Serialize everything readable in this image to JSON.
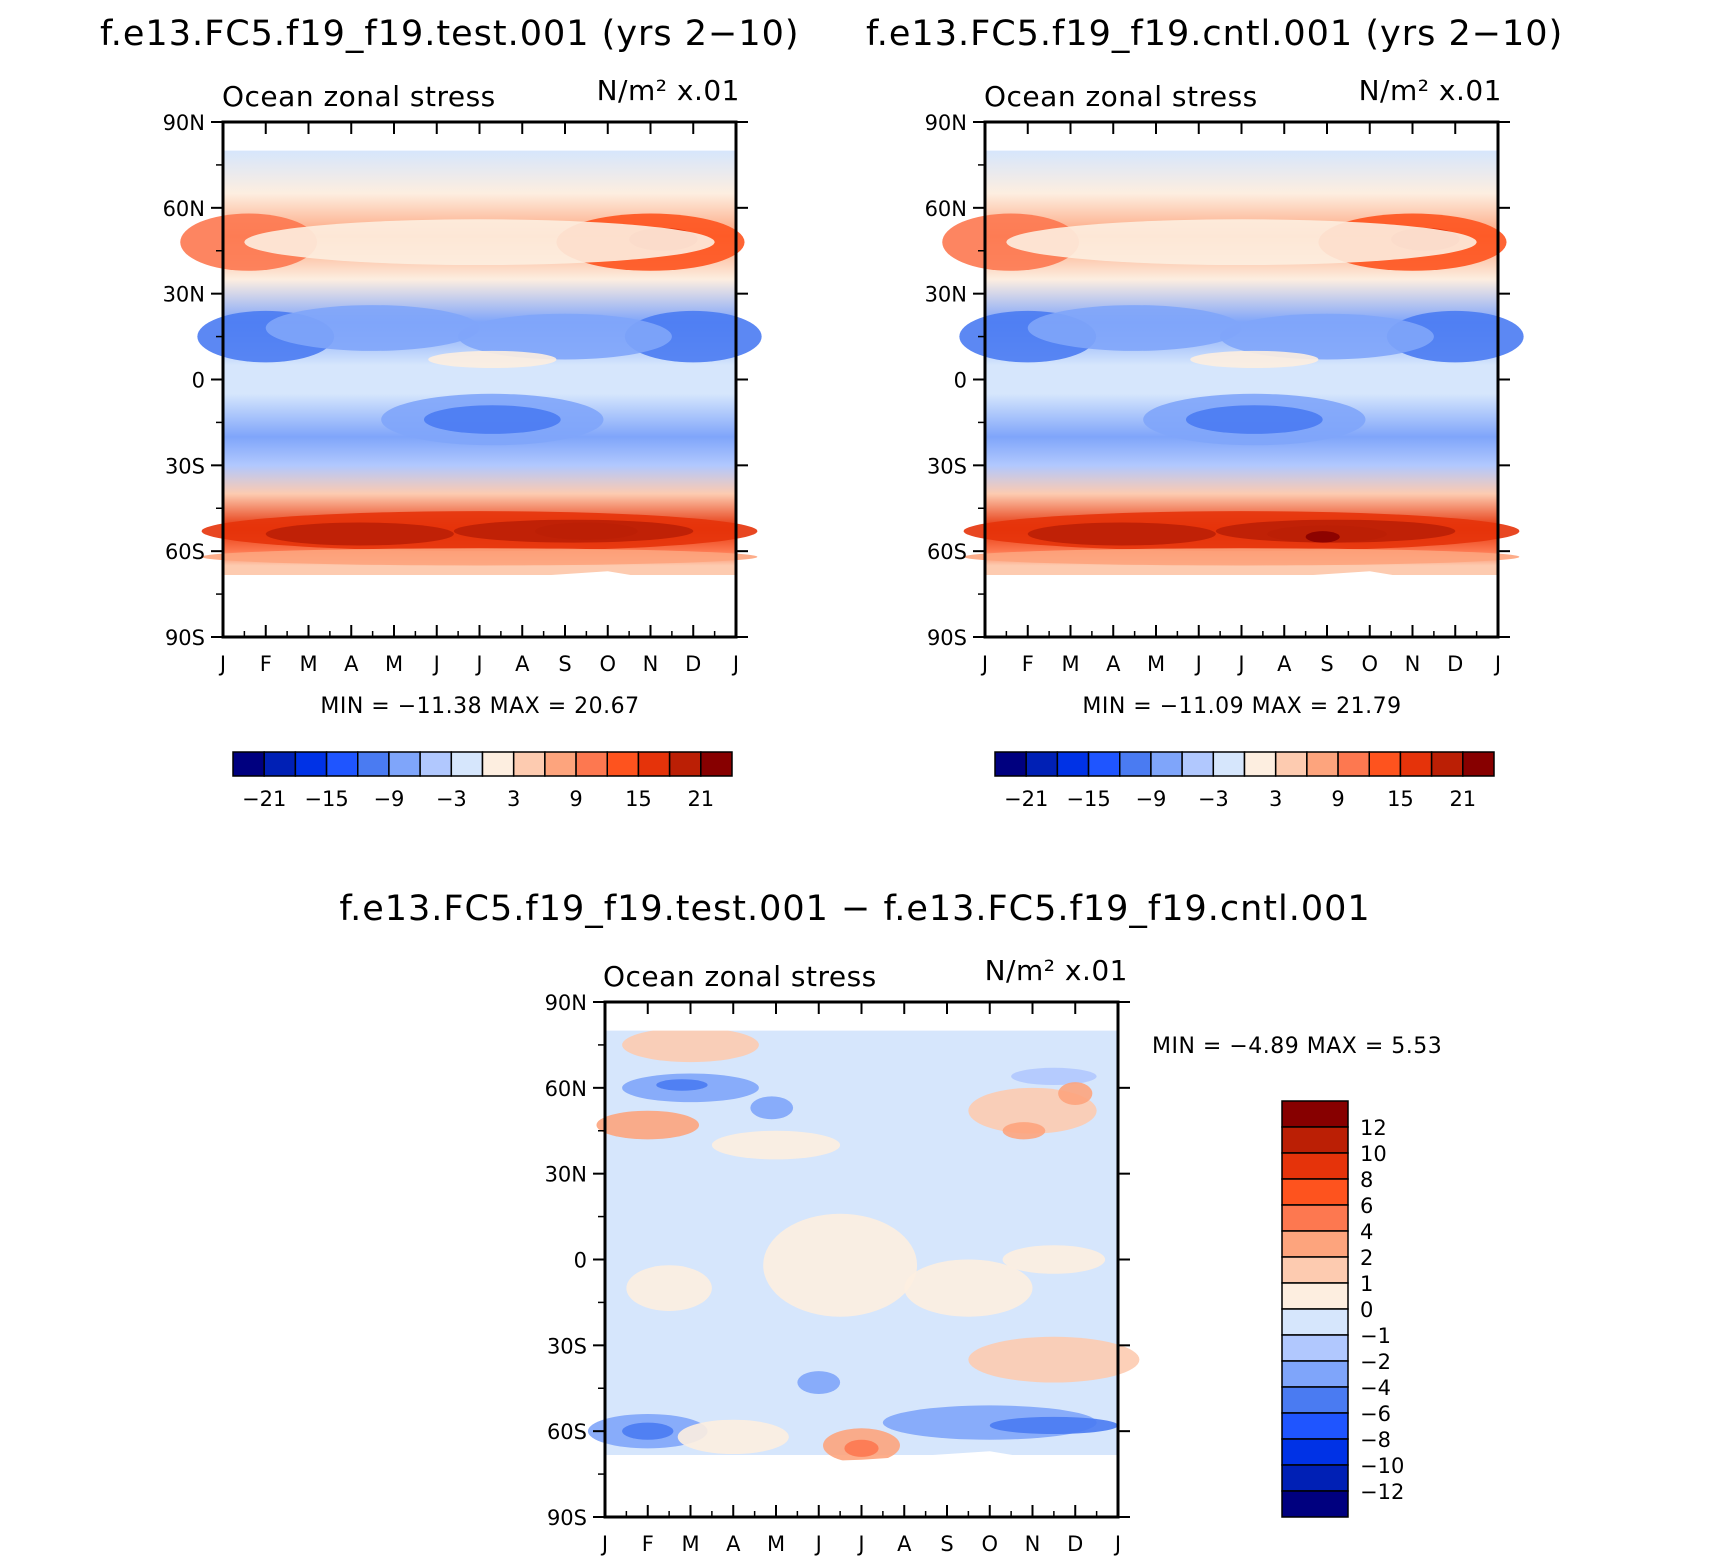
{
  "page": {
    "panel_a_title": "f.e13.FC5.f19_f19.test.001 (yrs 2−10)",
    "panel_b_title": "f.e13.FC5.f19_f19.cntl.001 (yrs 2−10)",
    "panel_c_title": "f.e13.FC5.f19_f19.test.001 − f.e13.FC5.f19_f19.cntl.001"
  },
  "chart_data": [
    {
      "type": "heatmap",
      "id": "test",
      "title": "f.e13.FC5.f19_f19.test.001 (yrs 2−10)",
      "left_label": "Ocean zonal stress",
      "units_label": "N/m² x.01",
      "x_ticks": [
        "J",
        "F",
        "M",
        "A",
        "M",
        "J",
        "J",
        "A",
        "S",
        "O",
        "N",
        "D",
        "J"
      ],
      "y_ticks": [
        "90N",
        "60N",
        "30N",
        "0",
        "30S",
        "60S",
        "90S"
      ],
      "y_range": [
        -90,
        90
      ],
      "min_max_text": "MIN = −11.38  MAX =   20.67",
      "min": -11.38,
      "max": 20.67,
      "levels": [
        -21,
        -18,
        -15,
        -12,
        -9,
        -6,
        -3,
        0,
        3,
        6,
        9,
        12,
        15,
        18,
        21
      ],
      "colorbar_labels": [
        "−21",
        "−15",
        "−9",
        "−3",
        "3",
        "9",
        "15",
        "21"
      ],
      "approx_zonal_profile": {
        "latitudes": [
          80,
          65,
          50,
          35,
          20,
          5,
          -5,
          -20,
          -30,
          -40,
          -52,
          -60,
          -65
        ],
        "annual_mean_values": [
          -2,
          2,
          8,
          1,
          -7,
          -2,
          -3,
          -8,
          -4,
          5,
          16,
          10,
          4
        ]
      }
    },
    {
      "type": "heatmap",
      "id": "cntl",
      "title": "f.e13.FC5.f19_f19.cntl.001 (yrs 2−10)",
      "left_label": "Ocean zonal stress",
      "units_label": "N/m² x.01",
      "x_ticks": [
        "J",
        "F",
        "M",
        "A",
        "M",
        "J",
        "J",
        "A",
        "S",
        "O",
        "N",
        "D",
        "J"
      ],
      "y_ticks": [
        "90N",
        "60N",
        "30N",
        "0",
        "30S",
        "60S",
        "90S"
      ],
      "y_range": [
        -90,
        90
      ],
      "min_max_text": "MIN = −11.09  MAX =   21.79",
      "min": -11.09,
      "max": 21.79,
      "levels": [
        -21,
        -18,
        -15,
        -12,
        -9,
        -6,
        -3,
        0,
        3,
        6,
        9,
        12,
        15,
        18,
        21
      ],
      "colorbar_labels": [
        "−21",
        "−15",
        "−9",
        "−3",
        "3",
        "9",
        "15",
        "21"
      ],
      "approx_zonal_profile": {
        "latitudes": [
          80,
          65,
          50,
          35,
          20,
          5,
          -5,
          -20,
          -30,
          -40,
          -52,
          -60,
          -65
        ],
        "annual_mean_values": [
          -2,
          2,
          8,
          1,
          -7,
          -2,
          -3,
          -8,
          -4,
          5,
          17,
          10,
          4
        ]
      }
    },
    {
      "type": "heatmap",
      "id": "diff",
      "title": "f.e13.FC5.f19_f19.test.001 − f.e13.FC5.f19_f19.cntl.001",
      "left_label": "Ocean zonal stress",
      "units_label": "N/m² x.01",
      "x_ticks": [
        "J",
        "F",
        "M",
        "A",
        "M",
        "J",
        "J",
        "A",
        "S",
        "O",
        "N",
        "D",
        "J"
      ],
      "y_ticks": [
        "90N",
        "60N",
        "30N",
        "0",
        "30S",
        "60S",
        "90S"
      ],
      "y_range": [
        -90,
        90
      ],
      "min_max_text": "MIN =   −4.89  MAX =    5.53",
      "min": -4.89,
      "max": 5.53,
      "levels": [
        -12,
        -10,
        -8,
        -6,
        -4,
        -2,
        -1,
        0,
        1,
        2,
        4,
        6,
        8,
        10,
        12
      ],
      "colorbar_labels": [
        "12",
        "10",
        "8",
        "6",
        "4",
        "2",
        "1",
        "0",
        "−1",
        "−2",
        "−4",
        "−6",
        "−8",
        "−10",
        "−12"
      ]
    }
  ],
  "colors": {
    "palette": [
      "#00007f",
      "#0020b5",
      "#0032e6",
      "#1f55ff",
      "#4a7bf2",
      "#7fa5fa",
      "#b1c8fe",
      "#d6e6fc",
      "#fdeee0",
      "#fdcbb0",
      "#fda47d",
      "#fd7850",
      "#fe531e",
      "#e5330a",
      "#bb1f05",
      "#870000"
    ],
    "land": "#ffffff"
  }
}
